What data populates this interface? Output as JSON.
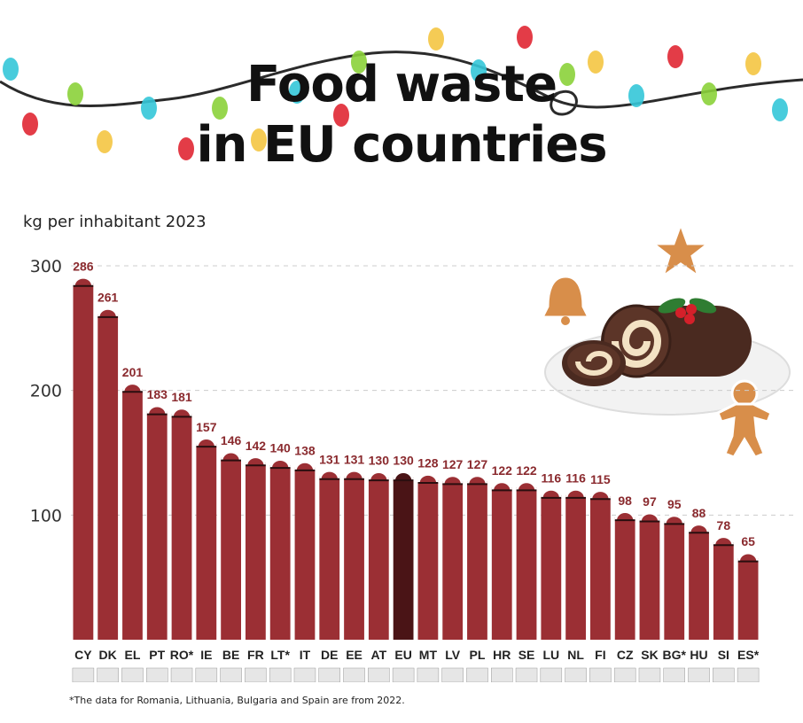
{
  "title_line1": "Food waste",
  "title_line2": "in EU countries",
  "subtitle": "kg per inhabitant 2023",
  "footnote": "*The data for Romania, Lithuania, Bulgaria and Spain are from 2022.",
  "colors": {
    "bar": "#9b2f34",
    "bar_eu": "#4a1416",
    "cap_outline": "#ffffff",
    "value_label": "#8a2a2e",
    "grid": "#cccccc",
    "tick_label": "#333333"
  },
  "icons": [
    "christmas-lights-icon",
    "yule-log-cake-icon",
    "gingerbread-star-icon",
    "gingerbread-bell-icon",
    "gingerbread-man-icon",
    "holly-icon"
  ],
  "chart_data": {
    "type": "bar",
    "title": "Food waste in EU countries",
    "ylabel": "kg per inhabitant 2023",
    "ylim": [
      0,
      300
    ],
    "yticks": [
      100,
      200,
      300
    ],
    "grid": true,
    "categories": [
      "CY",
      "DK",
      "EL",
      "PT",
      "RO*",
      "IE",
      "BE",
      "FR",
      "LT*",
      "IT",
      "DE",
      "EE",
      "AT",
      "EU",
      "MT",
      "LV",
      "PL",
      "HR",
      "SE",
      "LU",
      "NL",
      "FI",
      "CZ",
      "SK",
      "BG*",
      "HU",
      "SI",
      "ES*"
    ],
    "values": [
      286,
      261,
      201,
      183,
      181,
      157,
      146,
      142,
      140,
      138,
      131,
      131,
      130,
      130,
      128,
      127,
      127,
      122,
      122,
      116,
      116,
      115,
      98,
      97,
      95,
      88,
      78,
      65
    ],
    "highlight": "EU"
  }
}
